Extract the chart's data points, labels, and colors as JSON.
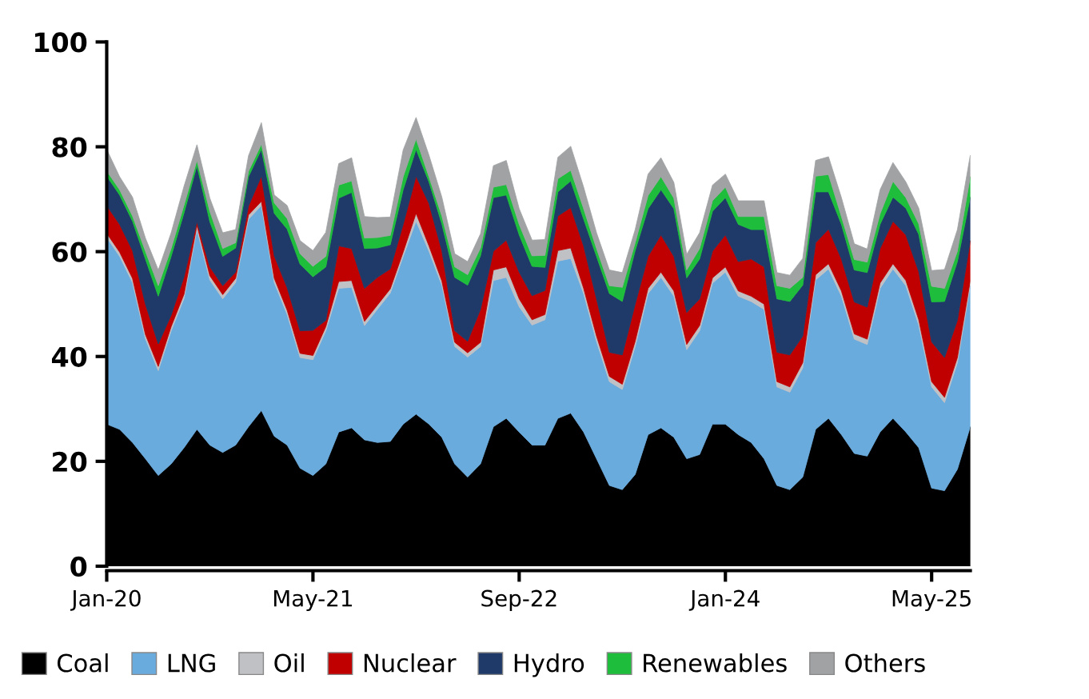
{
  "chart_data": {
    "type": "area",
    "stacked": true,
    "categories": [
      "Jan-20",
      null,
      null,
      null,
      null,
      null,
      null,
      null,
      null,
      null,
      null,
      null,
      null,
      null,
      null,
      null,
      "May-21",
      null,
      null,
      null,
      null,
      null,
      null,
      null,
      null,
      null,
      null,
      null,
      null,
      null,
      null,
      null,
      "Sep-22",
      null,
      null,
      null,
      null,
      null,
      null,
      null,
      null,
      null,
      null,
      null,
      null,
      null,
      null,
      null,
      "Jan-24",
      null,
      null,
      null,
      null,
      null,
      null,
      null,
      null,
      null,
      null,
      null,
      null,
      null,
      null,
      null,
      "May-25",
      null,
      null,
      null
    ],
    "ylim": [
      0,
      100
    ],
    "yticks": [
      0,
      20,
      40,
      60,
      80,
      100
    ],
    "grid": false,
    "legend": "bottom",
    "series": [
      {
        "name": "Coal",
        "color": "#000000",
        "values": [
          27.1,
          26.1,
          23.6,
          20.5,
          17.3,
          19.5,
          22.6,
          26.1,
          23.1,
          21.7,
          23.1,
          26.6,
          29.7,
          24.8,
          23.1,
          18.7,
          17.3,
          19.5,
          25.6,
          26.4,
          24.1,
          23.6,
          23.8,
          27.1,
          29.0,
          27.1,
          24.6,
          19.5,
          17.0,
          19.5,
          26.6,
          28.2,
          25.6,
          23.1,
          23.1,
          28.2,
          29.2,
          25.6,
          20.5,
          15.4,
          14.6,
          17.5,
          25.1,
          26.4,
          24.6,
          20.5,
          21.3,
          27.1,
          27.1,
          25.1,
          23.6,
          20.5,
          15.4,
          14.6,
          17.0,
          26.1,
          28.2,
          25.1,
          21.5,
          21.0,
          25.6,
          28.2,
          25.6,
          22.6,
          14.9,
          14.4,
          18.5,
          26.6
        ]
      },
      {
        "name": "LNG",
        "color": "#6aabdd",
        "values": [
          35.6,
          33.0,
          30.5,
          22.9,
          20.0,
          25.4,
          28.5,
          38.1,
          31.5,
          29.3,
          31.0,
          39.6,
          39.1,
          29.3,
          24.9,
          21.1,
          22.1,
          25.4,
          27.4,
          26.8,
          21.8,
          25.4,
          28.3,
          32.0,
          36.8,
          33.0,
          29.0,
          22.4,
          22.9,
          22.4,
          27.9,
          26.9,
          23.9,
          22.9,
          23.9,
          30.0,
          29.5,
          26.4,
          22.4,
          19.8,
          19.1,
          24.4,
          26.9,
          28.7,
          26.9,
          20.8,
          23.6,
          26.9,
          29.0,
          26.4,
          26.9,
          28.5,
          18.8,
          18.6,
          20.8,
          28.5,
          28.5,
          26.4,
          21.8,
          21.3,
          27.4,
          28.5,
          27.9,
          23.4,
          19.3,
          16.8,
          20.3,
          26.9
        ]
      },
      {
        "name": "Oil",
        "color": "#c0c1c5",
        "values": [
          0.8,
          0.8,
          0.8,
          0.8,
          0.8,
          0.8,
          0.8,
          0.8,
          0.8,
          0.8,
          0.8,
          0.8,
          0.8,
          0.8,
          0.8,
          0.8,
          0.8,
          0.8,
          1.3,
          1.3,
          0.8,
          0.8,
          0.8,
          0.8,
          1.5,
          1.0,
          0.8,
          0.8,
          0.8,
          0.8,
          2.0,
          2.0,
          1.5,
          1.0,
          1.0,
          2.0,
          2.0,
          1.0,
          1.0,
          1.0,
          1.0,
          1.0,
          1.0,
          1.0,
          1.0,
          1.0,
          1.0,
          1.0,
          1.0,
          1.0,
          1.0,
          1.0,
          1.0,
          1.0,
          1.0,
          1.0,
          1.0,
          1.0,
          1.0,
          1.0,
          1.0,
          1.0,
          1.0,
          1.0,
          1.0,
          1.0,
          1.0,
          1.0
        ]
      },
      {
        "name": "Nuclear",
        "color": "#c00000",
        "values": [
          5.3,
          5.3,
          5.3,
          5.8,
          4.3,
          2.2,
          3.3,
          0.7,
          1.7,
          1.7,
          1.2,
          1.7,
          4.8,
          4.3,
          4.3,
          4.3,
          4.8,
          1.2,
          6.8,
          6.1,
          6.3,
          5.3,
          3.8,
          5.3,
          7.1,
          8.1,
          5.8,
          2.2,
          2.2,
          6.3,
          3.6,
          5.1,
          5.1,
          4.6,
          4.6,
          6.6,
          7.7,
          8.1,
          7.1,
          4.6,
          5.6,
          7.1,
          6.1,
          7.1,
          6.6,
          6.1,
          5.1,
          5.1,
          6.1,
          5.6,
          7.1,
          7.1,
          5.6,
          6.1,
          5.1,
          6.1,
          6.6,
          6.1,
          6.1,
          6.1,
          6.6,
          8.1,
          8.7,
          9.2,
          7.6,
          7.6,
          7.1,
          7.6
        ]
      },
      {
        "name": "Hydro",
        "color": "#1f3a68",
        "values": [
          5.6,
          5.6,
          5.6,
          8.6,
          9.1,
          11.2,
          12.2,
          10.7,
          8.6,
          5.6,
          4.6,
          5.6,
          5.1,
          8.1,
          11.2,
          12.7,
          10.2,
          10.2,
          9.1,
          10.7,
          7.6,
          5.6,
          4.6,
          6.6,
          5.1,
          4.1,
          5.1,
          10.2,
          10.7,
          10.2,
          10.2,
          8.6,
          7.1,
          5.6,
          4.4,
          4.6,
          5.1,
          5.1,
          8.1,
          11.2,
          10.2,
          10.2,
          9.1,
          8.6,
          9.1,
          6.6,
          7.6,
          7.6,
          7.1,
          7.1,
          5.6,
          7.1,
          10.2,
          10.2,
          9.7,
          9.7,
          7.1,
          6.6,
          6.1,
          6.6,
          4.6,
          4.6,
          5.1,
          7.1,
          7.6,
          10.7,
          11.2,
          8.3
        ]
      },
      {
        "name": "Renewables",
        "color": "#1ebe3c",
        "values": [
          1.0,
          1.0,
          1.0,
          1.5,
          2.0,
          1.5,
          1.5,
          1.0,
          2.0,
          1.5,
          1.0,
          1.0,
          1.0,
          2.0,
          2.0,
          2.0,
          2.0,
          2.0,
          2.5,
          2.2,
          2.0,
          2.0,
          1.8,
          2.5,
          2.0,
          1.0,
          1.5,
          2.0,
          2.0,
          1.5,
          2.0,
          2.0,
          2.0,
          2.0,
          2.3,
          2.5,
          2.0,
          2.0,
          1.5,
          1.5,
          2.7,
          1.5,
          2.5,
          2.5,
          2.0,
          1.5,
          2.0,
          2.0,
          2.0,
          1.5,
          2.5,
          2.5,
          2.5,
          2.5,
          1.5,
          3.0,
          3.3,
          1.5,
          2.0,
          2.0,
          2.0,
          3.0,
          2.0,
          2.0,
          3.0,
          2.5,
          2.0,
          3.9
        ]
      },
      {
        "name": "Others",
        "color": "#a0a2a4",
        "values": [
          4.1,
          2.5,
          3.6,
          2.5,
          3.0,
          3.0,
          3.6,
          3.0,
          2.5,
          3.0,
          2.5,
          3.0,
          4.1,
          1.5,
          2.5,
          2.5,
          3.0,
          4.6,
          4.1,
          4.4,
          4.1,
          3.8,
          3.5,
          5.1,
          4.1,
          4.1,
          3.6,
          2.5,
          2.5,
          2.7,
          4.1,
          4.6,
          3.0,
          3.0,
          3.0,
          4.1,
          4.6,
          4.1,
          3.0,
          3.0,
          2.8,
          2.5,
          4.1,
          3.6,
          3.0,
          3.0,
          3.0,
          3.0,
          2.5,
          3.0,
          3.0,
          3.0,
          2.5,
          2.5,
          3.6,
          3.0,
          3.4,
          3.6,
          3.0,
          2.5,
          4.6,
          3.6,
          3.0,
          3.0,
          3.0,
          3.6,
          4.1,
          4.1
        ]
      }
    ]
  }
}
